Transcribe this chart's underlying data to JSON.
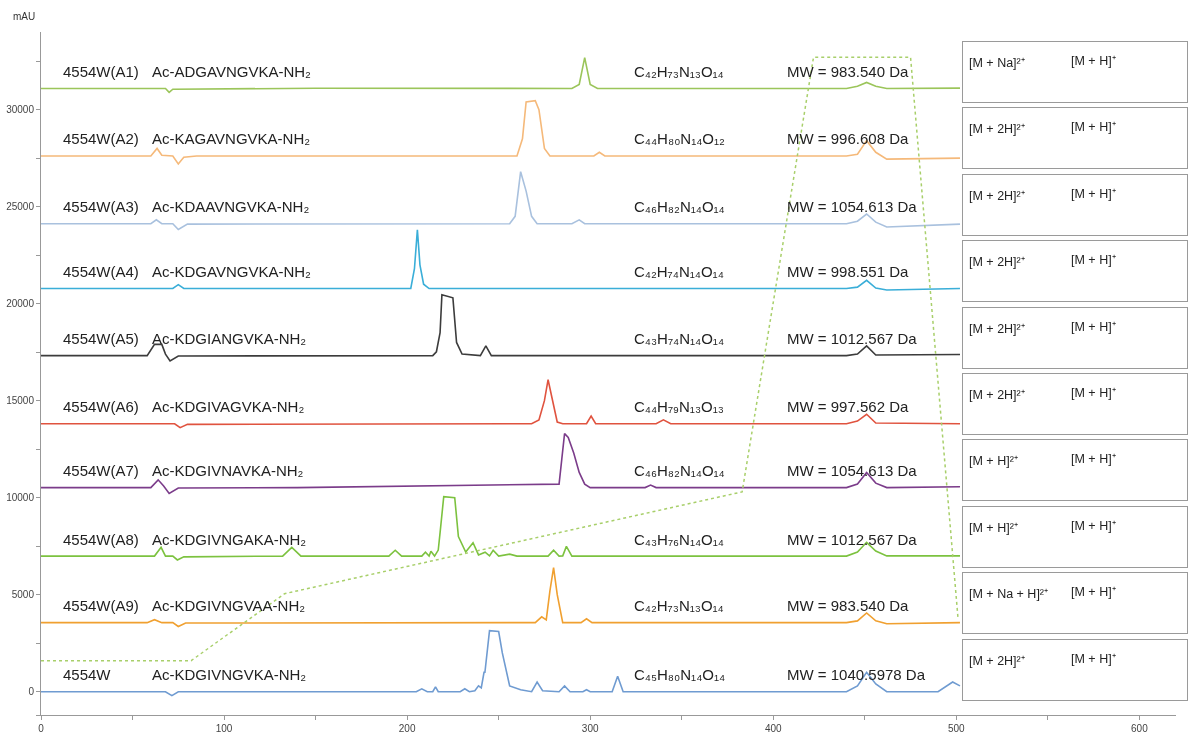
{
  "chart_data": {
    "type": "line",
    "ylabel": "mAU",
    "xlim": [
      0,
      620
    ],
    "ylim": [
      -1200,
      34000
    ],
    "xticks": [
      0,
      {
        "value": 50,
        "label": null
      },
      100,
      {
        "value": 150,
        "label": null
      },
      200,
      {
        "value": 250,
        "label": null
      },
      300,
      {
        "value": 350,
        "label": null
      },
      400,
      {
        "value": 450,
        "label": null
      },
      500,
      {
        "value": 550,
        "label": null
      },
      600
    ],
    "yticks": [
      {
        "value": -1200,
        "label": null
      },
      0,
      {
        "value": 2500,
        "label": null
      },
      5000,
      {
        "value": 7500,
        "label": null
      },
      10000,
      {
        "value": 12500,
        "label": null
      },
      15000,
      {
        "value": 17500,
        "label": null
      },
      20000,
      {
        "value": 22500,
        "label": null
      },
      25000,
      {
        "value": 27500,
        "label": null
      },
      30000,
      {
        "value": 32500,
        "label": null
      }
    ],
    "grid": false,
    "legend": false,
    "marker": "none",
    "line_style": "solid",
    "series": [
      {
        "name": "4554W(A1)",
        "color": "#9bc55a",
        "x": [
          0,
          68,
          70,
          72,
          150,
          290,
          294,
          297,
          300,
          304,
          440,
          446,
          451,
          456,
          462,
          502
        ],
        "values": [
          31090,
          31090,
          30890,
          31050,
          31100,
          31090,
          31300,
          32680,
          31300,
          31090,
          31090,
          31200,
          31400,
          31200,
          31090,
          31110
        ]
      },
      {
        "name": "4554W(A2)",
        "color": "#f5b97a",
        "x": [
          0,
          60,
          63.4,
          66,
          72,
          75,
          78,
          85,
          260,
          263,
          265,
          270,
          272,
          275,
          278,
          302,
          305,
          308,
          440,
          446,
          451,
          456,
          462,
          502
        ],
        "values": [
          27610,
          27610,
          28000,
          27650,
          27610,
          27200,
          27550,
          27610,
          27610,
          28500,
          30400,
          30460,
          30000,
          28000,
          27610,
          27610,
          27800,
          27610,
          27610,
          27700,
          28400,
          27800,
          27450,
          27500
        ]
      },
      {
        "name": "4554W(A3)",
        "color": "#a9c1de",
        "x": [
          0,
          60,
          63,
          66,
          72,
          75,
          80,
          256,
          259,
          262,
          265,
          268,
          271,
          290,
          294,
          297,
          440,
          446,
          451,
          456,
          462,
          502
        ],
        "values": [
          24120,
          24120,
          24320,
          24120,
          24120,
          23820,
          24100,
          24120,
          24500,
          26800,
          25800,
          24500,
          24120,
          24120,
          24320,
          24120,
          24120,
          24250,
          24620,
          24200,
          23950,
          24100
        ]
      },
      {
        "name": "4554W(A4)",
        "color": "#3aaed8",
        "x": [
          0,
          72,
          75,
          78,
          202,
          204,
          205.6,
          207,
          209,
          212,
          440,
          446,
          451,
          456,
          462,
          502
        ],
        "values": [
          20780,
          20780,
          20980,
          20780,
          20780,
          21800,
          23810,
          22000,
          21000,
          20780,
          20780,
          20850,
          21200,
          20800,
          20700,
          20780
        ]
      },
      {
        "name": "4554W(A5)",
        "color": "#3c3c3c",
        "x": [
          0,
          58,
          62,
          66,
          68,
          70.5,
          75,
          214,
          216,
          218,
          219,
          225,
          227,
          230,
          240,
          243,
          246,
          440,
          446,
          451,
          456,
          502
        ],
        "values": [
          17320,
          17320,
          17900,
          17900,
          17400,
          17050,
          17300,
          17320,
          17520,
          18500,
          20460,
          20300,
          18000,
          17400,
          17320,
          17820,
          17320,
          17320,
          17400,
          17820,
          17350,
          17380
        ]
      },
      {
        "name": "4554W(A6)",
        "color": "#e0533f",
        "x": [
          0,
          73,
          76,
          80,
          268,
          272,
          275,
          277,
          279,
          282,
          285,
          298,
          300.5,
          303,
          336,
          340,
          344,
          440,
          446,
          451,
          456,
          502
        ],
        "values": [
          13810,
          13810,
          13610,
          13780,
          13810,
          14010,
          15000,
          16080,
          15200,
          13900,
          13810,
          13810,
          14210,
          13810,
          13810,
          14010,
          13810,
          13810,
          13950,
          14300,
          13850,
          13810
        ]
      },
      {
        "name": "4554W(A7)",
        "color": "#7b3c8a",
        "x": [
          0,
          60,
          64,
          67,
          70,
          75,
          140,
          283,
          284.5,
          286,
          288,
          291,
          294,
          297,
          300,
          330,
          333,
          336,
          440,
          446,
          451,
          456,
          462,
          502
        ],
        "values": [
          10520,
          10520,
          10920,
          10600,
          10220,
          10500,
          10520,
          10700,
          12000,
          13300,
          13100,
          12300,
          11300,
          10700,
          10520,
          10520,
          10650,
          10520,
          10520,
          10700,
          11300,
          10750,
          10520,
          10560
        ]
      },
      {
        "name": "4554W(A8)",
        "color": "#7cc23f",
        "x": [
          0,
          62,
          65.6,
          68,
          72,
          74.5,
          78,
          132,
          137,
          142,
          190,
          193.5,
          197,
          208,
          210,
          212,
          213,
          215,
          217,
          218,
          220,
          226,
          228,
          232,
          236,
          239,
          242.6,
          245,
          247,
          250,
          256,
          260,
          277,
          280,
          283,
          285,
          287,
          290,
          440,
          446,
          451,
          456,
          462,
          502
        ],
        "values": [
          6990,
          6990,
          7440,
          6990,
          6990,
          6790,
          6950,
          6990,
          7440,
          6990,
          6990,
          7290,
          6990,
          6990,
          7190,
          6990,
          7240,
          6990,
          7300,
          8200,
          10050,
          10000,
          8000,
          7200,
          7680,
          7050,
          7190,
          7000,
          7290,
          6990,
          7090,
          6990,
          6990,
          7290,
          6990,
          7000,
          7490,
          6990,
          6990,
          7200,
          7700,
          7250,
          7000,
          7000
        ]
      },
      {
        "name": "4554W(A9)",
        "color": "#f0a030",
        "x": [
          0,
          58,
          62,
          66,
          72,
          75,
          79,
          270,
          273.5,
          276,
          278,
          280,
          282,
          285,
          295,
          298,
          301,
          440,
          446,
          451,
          456,
          462,
          502
        ],
        "values": [
          3560,
          3560,
          3710,
          3560,
          3560,
          3360,
          3540,
          3560,
          3860,
          3700,
          5200,
          6390,
          5000,
          3560,
          3560,
          3760,
          3560,
          3560,
          3650,
          4060,
          3650,
          3500,
          3560
        ]
      },
      {
        "name": "4554W",
        "color": "#6f9bd1",
        "x": [
          0,
          68,
          71.5,
          75,
          205,
          208,
          211,
          214,
          215.5,
          217,
          229,
          231.5,
          234,
          237,
          239,
          240.5,
          242,
          242.5,
          245,
          250,
          252,
          256,
          262,
          268,
          271,
          274,
          283,
          286,
          289,
          296,
          298,
          300,
          312,
          315,
          318,
          440,
          446,
          451,
          456,
          462,
          490,
          498,
          502
        ],
        "values": [
          0,
          0,
          -200,
          0,
          0,
          150,
          0,
          0,
          250,
          0,
          0,
          150,
          0,
          50,
          300,
          200,
          1000,
          1000,
          3150,
          3100,
          2000,
          300,
          100,
          0,
          500,
          50,
          0,
          300,
          0,
          0,
          100,
          0,
          0,
          800,
          0,
          0,
          300,
          1000,
          400,
          0,
          0,
          500,
          300
        ]
      },
      {
        "color": "#a8cf6a",
        "line_style": "dotted",
        "x": [
          0,
          82,
          133,
          383,
          422,
          475,
          501
        ],
        "values": [
          1600,
          1600,
          5050,
          10300,
          32700,
          32700,
          3700
        ]
      }
    ],
    "annotations": [
      "Ac-ADGAVNGVKA-NH₂",
      "C₄₂H₇₃N₁₃O₁₄",
      "MW = 983.540 Da",
      "Ac-KAGAVNGVKA-NH₂",
      "C₄₄H₈₀N₁₄O₁₂",
      "MW = 996.608 Da",
      "Ac-KDAAVNGVKA-NH₂",
      "C₄₆H₈₂N₁₄O₁₄",
      "MW = 1054.613 Da",
      "Ac-KDGAVNGVKA-NH₂",
      "C₄₂H₇₄N₁₄O₁₄",
      "MW = 998.551 Da",
      "Ac-KDGIANGVKA-NH₂",
      "C₄₃H₇₄N₁₄O₁₄",
      "MW = 1012.567 Da",
      "Ac-KDGIVAGVKA-NH₂",
      "C₄₄H₇₉N₁₃O₁₃",
      "MW = 997.562 Da",
      "Ac-KDGIVNAVKA-NH₂",
      "C₄₆H₈₂N₁₄O₁₄",
      "MW = 1054.613 Da",
      "Ac-KDGIVNGAKA-NH₂",
      "C₄₃H₇₆N₁₄O₁₄",
      "MW = 1012.567 Da",
      "Ac-KDGIVNGVAA-NH₂",
      "C₄₂H₇₃N₁₃O₁₄",
      "MW = 983.540 Da",
      "Ac-KDGIVNGVKA-NH₂",
      "C₄₅H₈₀N₁₄O₁₄",
      "MW = 1040.5978 Da",
      "[M + Na]²⁺",
      "[M + H]⁺",
      "[M + 2H]²⁺",
      "[M + H]⁺",
      "[M + 2H]²⁺",
      "[M + H]⁺",
      "[M + 2H]²⁺",
      "[M + H]⁺",
      "[M + 2H]²⁺",
      "[M + H]⁺",
      "[M + 2H]²⁺",
      "[M + H]⁺",
      "[M + H]²⁺",
      "[M + H]⁺",
      "[M + H]²⁺",
      "[M + H]⁺",
      "[M + Na + H]²⁺",
      "[M + H]⁺",
      "[M + 2H]²⁺",
      "[M + H]⁺"
    ]
  }
}
